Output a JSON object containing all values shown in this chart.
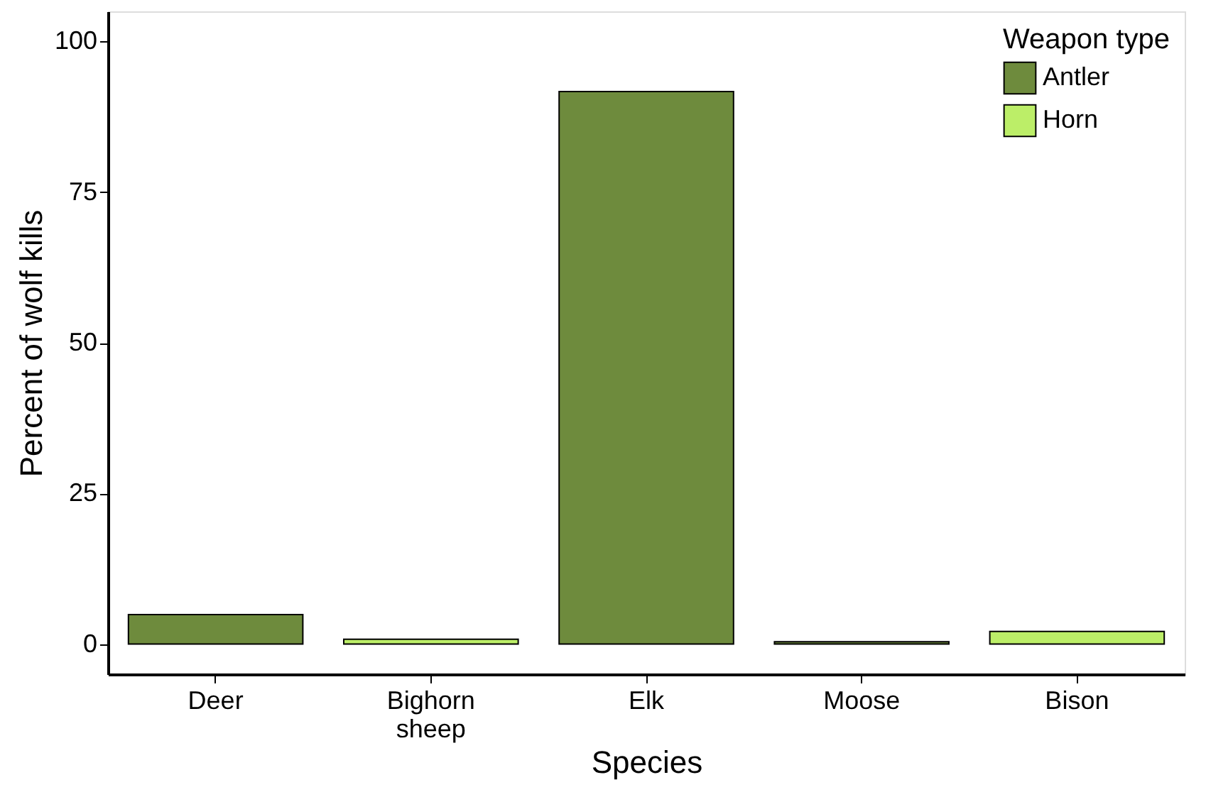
{
  "chart_data": {
    "type": "bar",
    "xlabel": "Species",
    "ylabel": "Percent of wolf kills",
    "legend_title": "Weapon type",
    "categories": [
      "Deer",
      "Bighorn sheep",
      "Elk",
      "Moose",
      "Bison"
    ],
    "series": [
      {
        "name": "Antler",
        "color": "#6e8b3d",
        "values": [
          4.9,
          null,
          91.7,
          0.4,
          null
        ]
      },
      {
        "name": "Horn",
        "color": "#bcee68",
        "values": [
          null,
          0.8,
          null,
          null,
          2.1
        ]
      }
    ],
    "ylim": [
      -5,
      105
    ],
    "yticks": [
      0,
      25,
      50,
      75,
      100
    ],
    "grid": false,
    "legend": "top right"
  }
}
